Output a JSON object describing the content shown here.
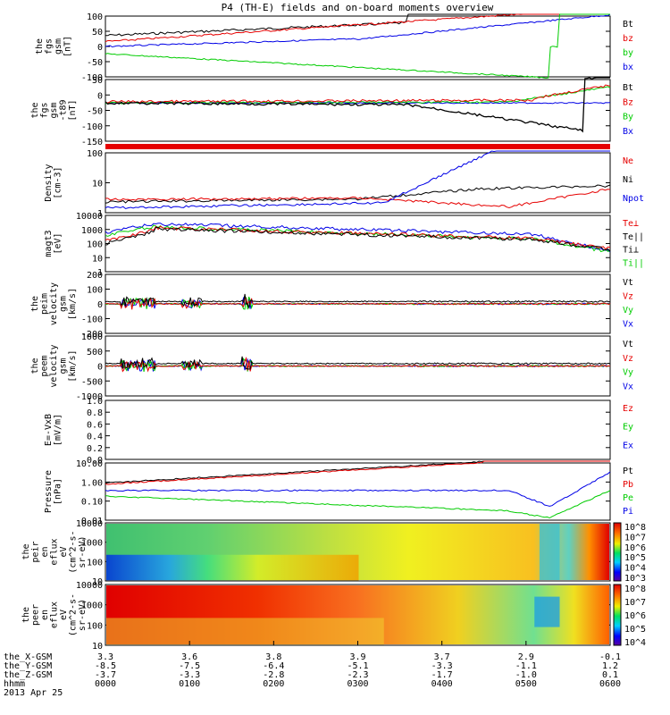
{
  "title": "P4 (TH-E) fields and on-board moments overview",
  "chart_data": {
    "type": "line",
    "title": "P4 (TH-E) fields and on-board moments overview",
    "x_tick_labels": {
      "the_X-GSM": [
        "3.3",
        "3.6",
        "3.8",
        "3.9",
        "3.7",
        "2.9",
        "-0.1"
      ],
      "the_Y-GSM": [
        "-8.5",
        "-7.5",
        "-6.4",
        "-5.1",
        "-3.3",
        "-1.1",
        "1.2"
      ],
      "the_Z-GSM": [
        "-3.7",
        "-3.3",
        "-2.8",
        "-2.3",
        "-1.7",
        "-1.0",
        "0.1"
      ],
      "hhmm": [
        "0000",
        "0100",
        "0200",
        "0300",
        "0400",
        "0500",
        "0600"
      ]
    },
    "x_row_labels": [
      "the_X-GSM",
      "the_Y-GSM",
      "the_Z-GSM",
      "hhmm"
    ],
    "date_label": "2013 Apr 25",
    "panels": [
      {
        "id": "fgs",
        "ylabel": [
          "the",
          "fgs",
          "gsm",
          "[nT]"
        ],
        "yticks": [
          "100",
          "50",
          "0",
          "-50",
          "-100"
        ],
        "ylim": [
          -100,
          100
        ],
        "legend": [
          {
            "name": "Bt",
            "color": "#000000"
          },
          {
            "name": "bz",
            "color": "#e60000"
          },
          {
            "name": "by",
            "color": "#00cc00"
          },
          {
            "name": "bx",
            "color": "#0000e6"
          }
        ]
      },
      {
        "id": "fgs_t89",
        "ylabel": [
          "the",
          "fgs",
          "gsm",
          "-t89",
          "[nT]"
        ],
        "yticks": [
          "50",
          "0",
          "-50",
          "-100",
          "-150"
        ],
        "ylim": [
          -180,
          65
        ],
        "legend": [
          {
            "name": "Bt",
            "color": "#000000"
          },
          {
            "name": "Bz",
            "color": "#e60000"
          },
          {
            "name": "By",
            "color": "#00cc00"
          },
          {
            "name": "Bx",
            "color": "#0000e6"
          }
        ]
      },
      {
        "id": "density",
        "ylabel": [
          "Density",
          "[cm-3]"
        ],
        "yticks": [
          "100",
          "10",
          "1"
        ],
        "log": true,
        "ylim": [
          0.7,
          200
        ],
        "legend": [
          {
            "name": "Ne",
            "color": "#e60000"
          },
          {
            "name": "Ni",
            "color": "#000000"
          },
          {
            "name": "Npot",
            "color": "#0000e6"
          }
        ]
      },
      {
        "id": "temperature",
        "ylabel": [
          "magt3",
          "[eV]"
        ],
        "yticks": [
          "10000",
          "1000",
          "100",
          "10",
          "1"
        ],
        "log": true,
        "ylim": [
          1,
          10000
        ],
        "legend": [
          {
            "name": "Te⊥",
            "color": "#e60000"
          },
          {
            "name": "Te||",
            "color": "#000000"
          },
          {
            "name": "Ti⊥",
            "color": "#000000"
          },
          {
            "name": "Ti||",
            "color": "#00cc00"
          }
        ]
      },
      {
        "id": "peim_velocity",
        "ylabel": [
          "the",
          "peim",
          "velocity",
          "gsm",
          "[km/s]"
        ],
        "yticks": [
          "200",
          "100",
          "0",
          "-100",
          "-200"
        ],
        "ylim": [
          -200,
          200
        ],
        "legend": [
          {
            "name": "Vt",
            "color": "#000000"
          },
          {
            "name": "Vz",
            "color": "#e60000"
          },
          {
            "name": "Vy",
            "color": "#00cc00"
          },
          {
            "name": "Vx",
            "color": "#0000e6"
          }
        ]
      },
      {
        "id": "peem_velocity",
        "ylabel": [
          "the",
          "peem",
          "velocity",
          "gsm",
          "[km/s]"
        ],
        "yticks": [
          "1000",
          "500",
          "0",
          "-500",
          "-1000"
        ],
        "ylim": [
          -1000,
          1000
        ],
        "legend": [
          {
            "name": "Vt",
            "color": "#000000"
          },
          {
            "name": "Vz",
            "color": "#e60000"
          },
          {
            "name": "Vy",
            "color": "#00cc00"
          },
          {
            "name": "Vx",
            "color": "#0000e6"
          }
        ]
      },
      {
        "id": "efield",
        "ylabel": [
          "E=-VxB",
          "[mV/m]"
        ],
        "yticks": [
          "1.0",
          "0.8",
          "0.6",
          "0.4",
          "0.2",
          "0.0"
        ],
        "ylim": [
          0,
          1
        ],
        "legend": [
          {
            "name": "Ez",
            "color": "#e60000"
          },
          {
            "name": "Ey",
            "color": "#00cc00"
          },
          {
            "name": "Ex",
            "color": "#0000e6"
          }
        ]
      },
      {
        "id": "pressure",
        "ylabel": [
          "Pressure",
          "[nPa]"
        ],
        "yticks": [
          "10.00",
          "1.00",
          "0.10",
          "0.01"
        ],
        "log": true,
        "ylim": [
          0.01,
          10
        ],
        "legend": [
          {
            "name": "Pt",
            "color": "#000000"
          },
          {
            "name": "Pb",
            "color": "#e60000"
          },
          {
            "name": "Pe",
            "color": "#00cc00"
          },
          {
            "name": "Pi",
            "color": "#0000e6"
          }
        ]
      },
      {
        "id": "peir_spectrogram",
        "ylabel": [
          "the",
          "peir",
          "en",
          "eflux",
          "eV",
          "(cm^2-s-",
          "sr-eV)"
        ],
        "yticks": [
          "10000",
          "1000",
          "100",
          "10"
        ],
        "log": true,
        "colorbar_ticks": [
          "10^8",
          "10^7",
          "10^6",
          "10^5",
          "10^4",
          "10^3"
        ]
      },
      {
        "id": "peer_spectrogram",
        "ylabel": [
          "the",
          "peer",
          "en",
          "eflux",
          "eV",
          "(cm^2-s-",
          "sr-eV)"
        ],
        "yticks": [
          "10000",
          "1000",
          "100",
          "10"
        ],
        "log": true,
        "colorbar_ticks": [
          "10^8",
          "10^7",
          "10^6",
          "10^5",
          "10^4"
        ]
      }
    ]
  }
}
